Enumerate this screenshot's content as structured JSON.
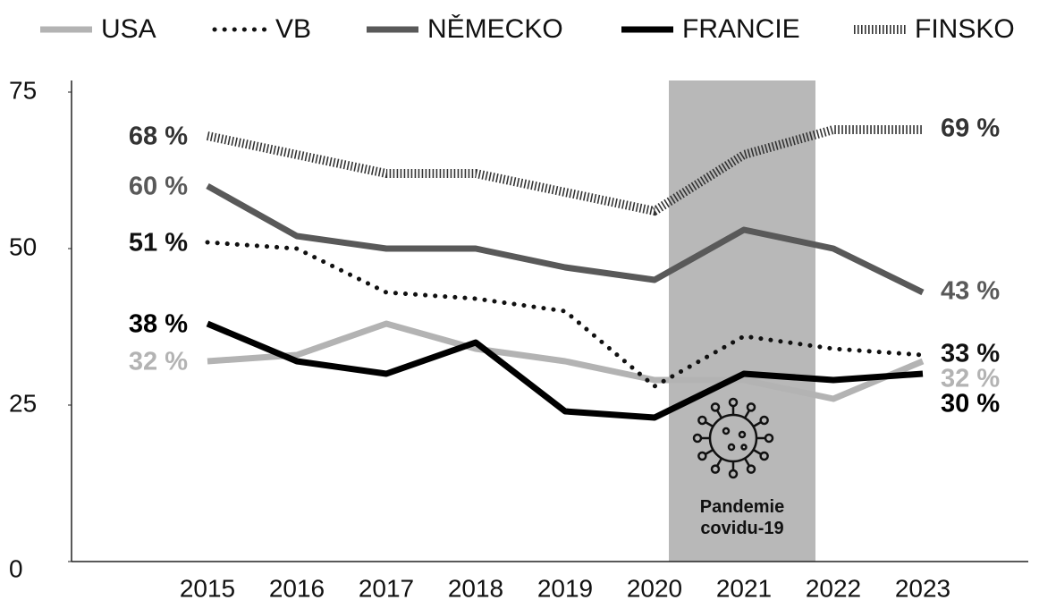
{
  "chart_data": {
    "type": "line",
    "categories": [
      "2015",
      "2016",
      "2017",
      "2018",
      "2019",
      "2020",
      "2021",
      "2022",
      "2023"
    ],
    "ylim": [
      0,
      75
    ],
    "yticks": [
      0,
      25,
      50,
      75
    ],
    "grid": false,
    "legend": "top",
    "annotation": "Pandemie covidu-19",
    "series": [
      {
        "name": "USA",
        "color": "#b3b3b3",
        "style": "solid",
        "values": [
          32,
          33,
          38,
          34,
          32,
          29,
          29,
          26,
          32
        ],
        "value_labels": [
          "32 %",
          null,
          null,
          null,
          null,
          null,
          null,
          null,
          "32 %"
        ]
      },
      {
        "name": "VB",
        "color": "#111111",
        "style": "dotted",
        "values": [
          51,
          50,
          43,
          42,
          40,
          28,
          36,
          34,
          33
        ],
        "value_labels": [
          "51 %",
          null,
          null,
          null,
          null,
          null,
          null,
          null,
          "33 %"
        ]
      },
      {
        "name": "NĚMECKO",
        "color": "#595959",
        "style": "solid",
        "values": [
          60,
          52,
          50,
          50,
          47,
          45,
          53,
          50,
          43
        ],
        "value_labels": [
          "60 %",
          null,
          null,
          null,
          null,
          null,
          null,
          null,
          "43 %"
        ]
      },
      {
        "name": "FRANCIE",
        "color": "#000000",
        "style": "solid",
        "values": [
          38,
          32,
          30,
          35,
          24,
          23,
          30,
          29,
          30
        ],
        "value_labels": [
          "38 %",
          null,
          null,
          null,
          null,
          null,
          null,
          null,
          "30 %"
        ]
      },
      {
        "name": "FINSKO",
        "color": "#333333",
        "style": "hatched",
        "values": [
          68,
          65,
          62,
          62,
          59,
          56,
          65,
          69,
          69
        ],
        "value_labels": [
          "68 %",
          null,
          null,
          null,
          null,
          null,
          null,
          null,
          "69 %"
        ]
      }
    ]
  }
}
